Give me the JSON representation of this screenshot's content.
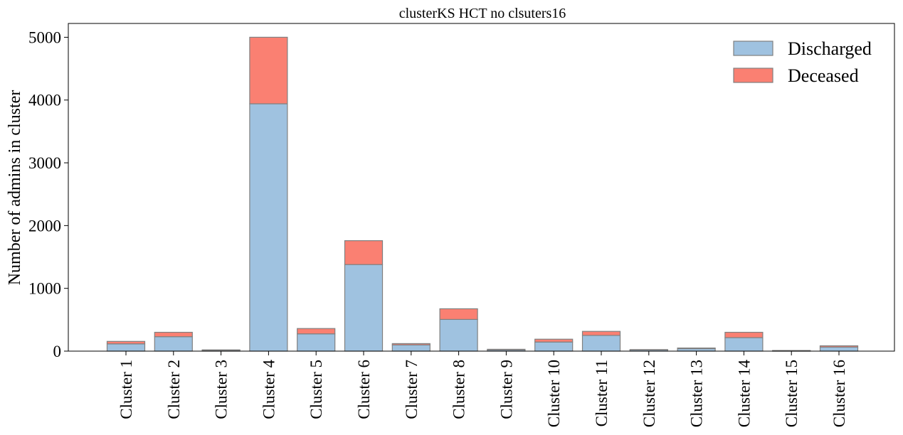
{
  "chart_data": {
    "type": "bar",
    "stacked": true,
    "title": "clusterKS HCT no clsuters16",
    "xlabel": "",
    "ylabel": "Number of admins in cluster",
    "ylim": [
      0,
      5220
    ],
    "yticks": [
      0,
      1000,
      2000,
      3000,
      4000,
      5000
    ],
    "grid": false,
    "legend_position": "top-right",
    "categories": [
      "Cluster 1",
      "Cluster 2",
      "Cluster 3",
      "Cluster 4",
      "Cluster 5",
      "Cluster 6",
      "Cluster 7",
      "Cluster 8",
      "Cluster 9",
      "Cluster 10",
      "Cluster 11",
      "Cluster 12",
      "Cluster 13",
      "Cluster 14",
      "Cluster 15",
      "Cluster 16"
    ],
    "series": [
      {
        "name": "Discharged",
        "color": "#9fc2e0",
        "values": [
          115,
          230,
          15,
          3940,
          275,
          1380,
          100,
          505,
          20,
          145,
          250,
          20,
          40,
          215,
          5,
          65
        ]
      },
      {
        "name": "Deceased",
        "color": "#fa8072",
        "values": [
          40,
          70,
          5,
          1060,
          85,
          380,
          20,
          170,
          10,
          45,
          65,
          5,
          10,
          85,
          5,
          20
        ]
      }
    ],
    "edge_color": "#808080"
  }
}
